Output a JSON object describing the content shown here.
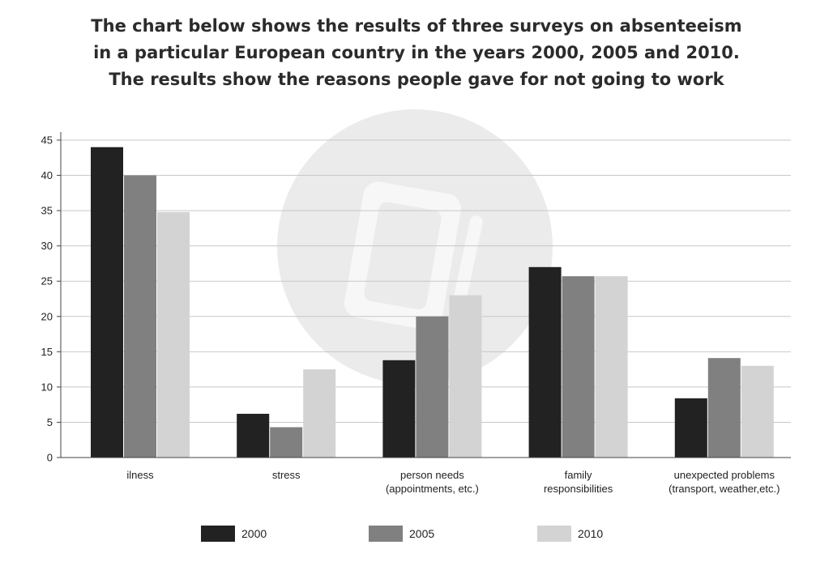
{
  "title_lines": [
    "The chart below shows the results of three surveys on absenteeism",
    "in a particular European country in the years 2000, 2005 and 2010.",
    "The results show the reasons people gave for not going to work"
  ],
  "chart_data": {
    "type": "bar",
    "title": "The chart below shows the results of three surveys on absenteeism in a particular European country in the years 2000, 2005 and 2010. The results show the reasons people gave for not going to work",
    "xlabel": "",
    "ylabel": "",
    "ylim": [
      0,
      45
    ],
    "yticks": [
      0,
      5,
      10,
      15,
      20,
      25,
      30,
      35,
      40,
      45
    ],
    "grid": true,
    "legend_position": "bottom",
    "categories": [
      [
        "ilness"
      ],
      [
        "stress"
      ],
      [
        "person needs",
        "(appointments, etc.)"
      ],
      [
        "family",
        "responsibilities"
      ],
      [
        "unexpected problems",
        "(transport, weather,etc.)"
      ]
    ],
    "series": [
      {
        "name": "2000",
        "color": "#222222",
        "values": [
          44,
          6.2,
          13.8,
          27,
          8.4
        ]
      },
      {
        "name": "2005",
        "color": "#808080",
        "values": [
          40,
          4.3,
          20,
          25.7,
          14.1
        ]
      },
      {
        "name": "2010",
        "color": "#d3d3d3",
        "values": [
          34.8,
          12.5,
          23,
          25.7,
          13
        ]
      }
    ]
  }
}
